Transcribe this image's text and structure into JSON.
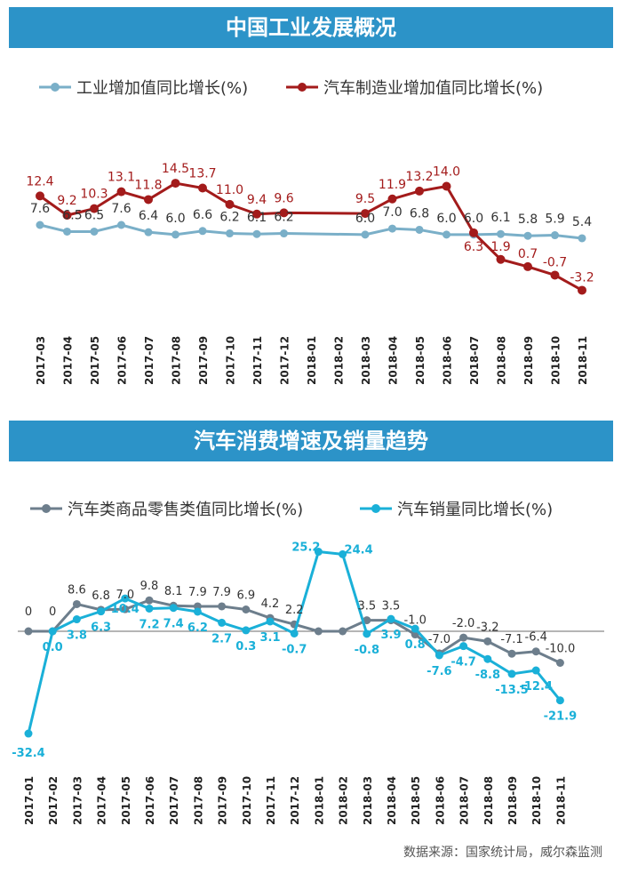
{
  "colors": {
    "banner": "#2c93c8",
    "industry": "#7aafc8",
    "auto_mfg": "#a31b1b",
    "retail": "#6d7e8c",
    "sales": "#1ab0d8",
    "label_dark": "#333333"
  },
  "chart_data": [
    {
      "type": "line",
      "title": "中国工业发展概况",
      "x": [
        "2017-03",
        "2017-04",
        "2017-05",
        "2017-06",
        "2017-07",
        "2017-08",
        "2017-09",
        "2017-10",
        "2017-11",
        "2017-12",
        "2018-01",
        "2018-02",
        "2018-03",
        "2018-04",
        "2018-05",
        "2018-06",
        "2018-07",
        "2018-08",
        "2018-09",
        "2018-10",
        "2018-11"
      ],
      "series": [
        {
          "name": "工业增加值同比增长(%)",
          "values": [
            7.6,
            6.5,
            6.5,
            7.6,
            6.4,
            6.0,
            6.6,
            6.2,
            6.1,
            6.2,
            null,
            null,
            6.0,
            7.0,
            6.8,
            6.0,
            6.0,
            6.1,
            5.8,
            5.9,
            5.4
          ],
          "point_labels": [
            "7.6",
            "6.5",
            "6.5",
            "7.6",
            "6.4",
            "6.0",
            "6.6",
            "6.2",
            "6.1",
            "6.2",
            "",
            "",
            "6.0",
            "7.0",
            "6.8",
            "6.0",
            "6.0",
            "6.1",
            "5.8",
            "5.9",
            "5.4"
          ]
        },
        {
          "name": "汽车制造业增加值同比增长(%)",
          "values": [
            12.4,
            9.2,
            10.3,
            13.1,
            11.8,
            14.5,
            13.7,
            11.0,
            9.4,
            9.6,
            null,
            null,
            9.5,
            11.9,
            13.2,
            14.0,
            6.3,
            1.9,
            0.7,
            -0.7,
            -3.2
          ],
          "point_labels": [
            "12.4",
            "9.2",
            "10.3",
            "13.1",
            "11.8",
            "14.5",
            "13.7",
            "11.0",
            "9.4",
            "9.6",
            "",
            "",
            "9.5",
            "11.9",
            "13.2",
            "14.0",
            "6.3",
            "1.9",
            "0.7",
            "-0.7",
            "-3.2"
          ]
        }
      ],
      "ylim": [
        -4,
        18
      ],
      "legend": "top",
      "grid": false
    },
    {
      "type": "line",
      "title": "汽车消费增速及销量趋势",
      "x": [
        "2017-01",
        "2017-02",
        "2017-03",
        "2017-04",
        "2017-05",
        "2017-06",
        "2017-07",
        "2017-08",
        "2017-09",
        "2017-10",
        "2017-11",
        "2017-12",
        "2018-01",
        "2018-02",
        "2018-03",
        "2018-04",
        "2018-05",
        "2018-06",
        "2018-07",
        "2018-08",
        "2018-09",
        "2018-10",
        "2018-11"
      ],
      "series": [
        {
          "name": "汽车类商品零售类值同比增长(%)",
          "values": [
            0,
            0,
            8.6,
            6.8,
            7.0,
            9.8,
            8.1,
            7.9,
            7.9,
            6.9,
            4.2,
            2.2,
            0,
            0,
            3.5,
            3.5,
            -1.0,
            -7.0,
            -2.0,
            -3.2,
            -7.1,
            -6.4,
            -10.0
          ],
          "point_labels": [
            "0",
            "0",
            "8.6",
            "6.8",
            "7.0",
            "9.8",
            "8.1",
            "7.9",
            "7.9",
            "6.9",
            "4.2",
            "2.2",
            "",
            "",
            "3.5",
            "3.5",
            "-1.0",
            "-7.0",
            "-2.0",
            "-3.2",
            "-7.1",
            "-6.4",
            "-10.0"
          ]
        },
        {
          "name": "汽车销量同比增长(%)",
          "values": [
            -32.4,
            0.0,
            3.8,
            6.3,
            10.4,
            7.2,
            7.4,
            6.2,
            2.7,
            0.3,
            3.1,
            -0.7,
            25.2,
            24.4,
            -0.8,
            3.9,
            0.8,
            -7.6,
            -4.7,
            -8.8,
            -13.5,
            -12.4,
            -21.9
          ],
          "point_labels": [
            "-32.4",
            "0.0",
            "3.8",
            "6.3",
            "10.4",
            "7.2",
            "7.4",
            "6.2",
            "2.7",
            "0.3",
            "3.1",
            "-0.7",
            "25.2",
            "24.4",
            "-0.8",
            "3.9",
            "0.8",
            "-7.6",
            "-4.7",
            "-8.8",
            "-13.5",
            "-12.4",
            "-21.9"
          ]
        }
      ],
      "ylim": [
        -35,
        30
      ],
      "legend": "top",
      "grid": false,
      "baseline": 0
    }
  ],
  "footer": {
    "source": "数据来源：国家统计局，威尔森监测"
  }
}
